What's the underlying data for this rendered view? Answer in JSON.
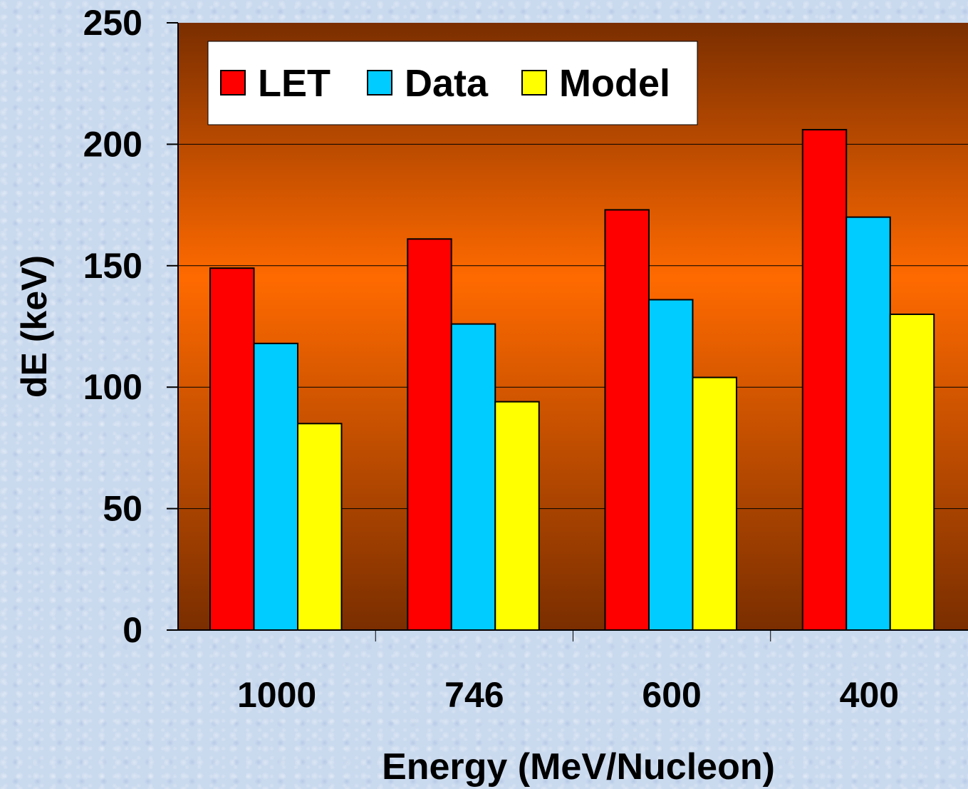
{
  "chart_data": {
    "type": "bar",
    "title": "",
    "xlabel": "Energy (MeV/Nucleon)",
    "ylabel": "dE (keV)",
    "categories": [
      "1000",
      "746",
      "600",
      "400"
    ],
    "ylim": [
      0,
      250
    ],
    "yticks": [
      "0",
      "50",
      "100",
      "150",
      "200",
      "250"
    ],
    "grid": true,
    "legend_position": "top-left",
    "series": [
      {
        "name": "LET",
        "color": "#ff0000",
        "values": [
          149,
          161,
          173,
          206
        ]
      },
      {
        "name": "Data",
        "color": "#00ccff",
        "values": [
          118,
          126,
          136,
          170
        ]
      },
      {
        "name": "Model",
        "color": "#ffff00",
        "values": [
          85,
          94,
          104,
          130
        ]
      }
    ]
  }
}
